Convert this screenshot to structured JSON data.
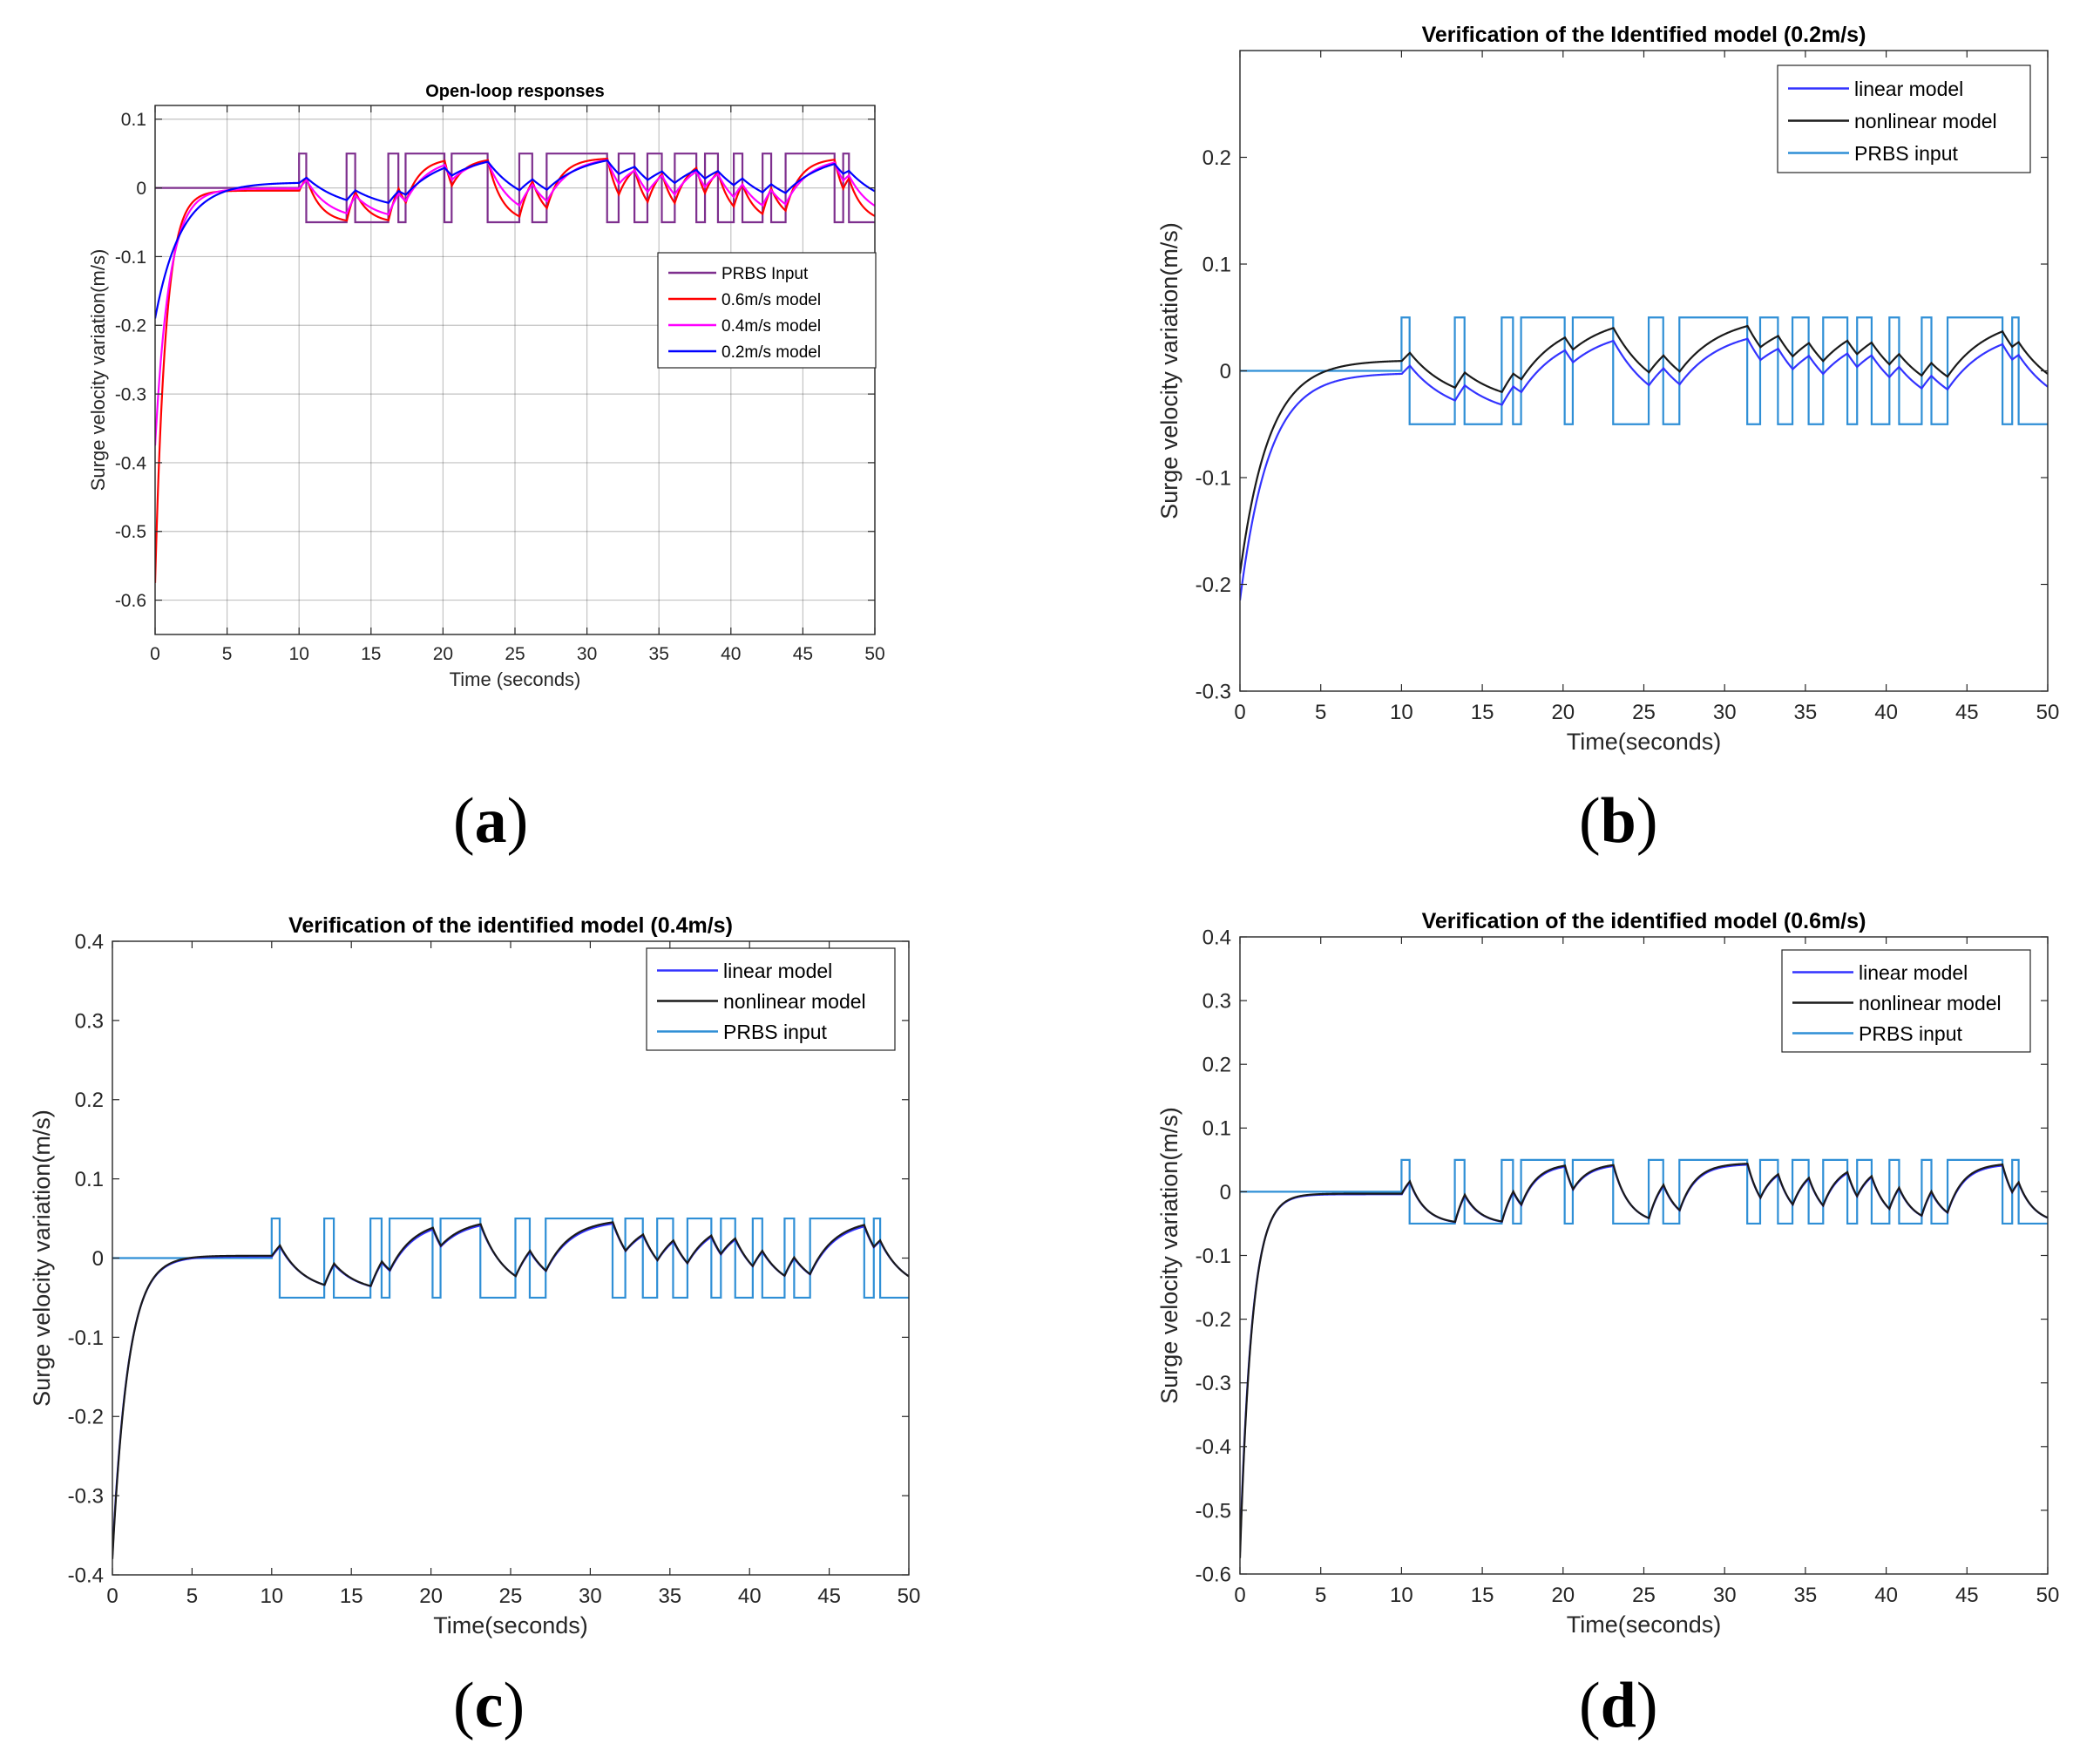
{
  "figure": {
    "captions": [
      {
        "open": "(",
        "letter": "a",
        "close": ")"
      },
      {
        "open": "(",
        "letter": "b",
        "close": ")"
      },
      {
        "open": "(",
        "letter": "c",
        "close": ")"
      },
      {
        "open": "(",
        "letter": "d",
        "close": ")"
      }
    ]
  },
  "chart_data": [
    {
      "id": "a",
      "type": "line",
      "title": "Open-loop responses",
      "xlabel": "Time (seconds)",
      "ylabel": "Surge velocity variation(m/s)",
      "xlim": [
        0,
        50
      ],
      "ylim": [
        -0.65,
        0.12
      ],
      "xticks": [
        0,
        5,
        10,
        15,
        20,
        25,
        30,
        35,
        40,
        45,
        50
      ],
      "yticks": [
        0.1,
        0,
        -0.1,
        -0.2,
        -0.3,
        -0.4,
        -0.5,
        -0.6
      ],
      "ytick_labels": [
        "0.1",
        "0",
        "-0.1",
        "-0.2",
        "-0.3",
        "-0.4",
        "-0.5",
        "-0.6"
      ],
      "grid": true,
      "legend_position": "center-right",
      "prbs": {
        "switch_times": [
          10,
          10.5,
          13.3,
          13.9,
          16.2,
          16.9,
          17.4,
          20.1,
          20.6,
          23.1,
          25.3,
          26.2,
          27.2,
          31.4,
          32.2,
          33.3,
          34.2,
          35.2,
          36.1,
          37.6,
          38.2,
          39.1,
          40.2,
          40.8,
          42.2,
          42.8,
          43.8,
          47.2,
          47.8,
          48.2
        ],
        "high": 0.05,
        "low": -0.05,
        "start_high": true
      },
      "series": [
        {
          "name": "PRBS Input",
          "color": "#7e2f8e",
          "kind": "prbs"
        },
        {
          "name": "0.6m/s model",
          "color": "#ff0000",
          "kind": "response",
          "y0": -0.575,
          "tau1": 0.75,
          "gain": 0.95,
          "tau2": 1.0,
          "settle": -0.004
        },
        {
          "name": "0.4m/s model",
          "color": "#ff00ff",
          "kind": "response",
          "y0": -0.375,
          "tau1": 1.0,
          "gain": 0.92,
          "tau2": 1.6,
          "settle": -0.001
        },
        {
          "name": "0.2m/s model",
          "color": "#0000ff",
          "kind": "response",
          "y0": -0.19,
          "tau1": 1.8,
          "gain": 0.85,
          "tau2": 2.6,
          "settle": 0.008
        }
      ]
    },
    {
      "id": "b",
      "type": "line",
      "title": "Verification of the Identified model (0.2m/s)",
      "xlabel": "Time(seconds)",
      "ylabel": "Surge velocity variation(m/s)",
      "xlim": [
        0,
        50
      ],
      "ylim": [
        -0.3,
        0.3
      ],
      "xticks": [
        0,
        5,
        10,
        15,
        20,
        25,
        30,
        35,
        40,
        45,
        50
      ],
      "yticks": [
        0.2,
        0.1,
        0,
        -0.1,
        -0.2,
        -0.3
      ],
      "ytick_labels": [
        "0.2",
        "0.1",
        "0",
        "-0.1",
        "-0.2",
        "-0.3"
      ],
      "grid": false,
      "legend_position": "top-right",
      "prbs": {
        "switch_times": [
          10,
          10.5,
          13.3,
          13.9,
          16.2,
          16.9,
          17.4,
          20.1,
          20.6,
          23.1,
          25.3,
          26.2,
          27.2,
          31.4,
          32.2,
          33.3,
          34.2,
          35.2,
          36.1,
          37.6,
          38.2,
          39.1,
          40.2,
          40.8,
          42.2,
          42.8,
          43.8,
          47.2,
          47.8,
          48.2
        ],
        "high": 0.05,
        "low": -0.05,
        "start_high": true
      },
      "series": [
        {
          "name": "linear model",
          "color": "#3333ff",
          "kind": "response",
          "y0": -0.215,
          "tau1": 1.8,
          "gain": 0.85,
          "tau2": 2.6,
          "settle": -0.002
        },
        {
          "name": "nonlinear model",
          "color": "#1a1a1a",
          "kind": "response",
          "y0": -0.19,
          "tau1": 1.8,
          "gain": 0.85,
          "tau2": 2.6,
          "settle": 0.01
        },
        {
          "name": "PRBS input",
          "color": "#2f8fd6",
          "kind": "prbs"
        }
      ]
    },
    {
      "id": "c",
      "type": "line",
      "title": "Verification of the identified model (0.4m/s)",
      "xlabel": "Time(seconds)",
      "ylabel": "Surge velocity variation(m/s)",
      "xlim": [
        0,
        50
      ],
      "ylim": [
        -0.4,
        0.4
      ],
      "xticks": [
        0,
        5,
        10,
        15,
        20,
        25,
        30,
        35,
        40,
        45,
        50
      ],
      "yticks": [
        0.4,
        0.3,
        0.2,
        0.1,
        0,
        -0.1,
        -0.2,
        -0.3,
        -0.4
      ],
      "ytick_labels": [
        "0.4",
        "0.3",
        "0.2",
        "0.1",
        "0",
        "-0.1",
        "-0.2",
        "-0.3",
        "-0.4"
      ],
      "grid": false,
      "legend_position": "top-right",
      "prbs": {
        "switch_times": [
          10,
          10.5,
          13.3,
          13.9,
          16.2,
          16.9,
          17.4,
          20.1,
          20.6,
          23.1,
          25.3,
          26.2,
          27.2,
          31.4,
          32.2,
          33.3,
          34.2,
          35.2,
          36.1,
          37.6,
          38.2,
          39.1,
          40.2,
          40.8,
          42.2,
          42.8,
          43.8,
          47.2,
          47.8,
          48.2
        ],
        "high": 0.05,
        "low": -0.05,
        "start_high": true
      },
      "series": [
        {
          "name": "linear model",
          "color": "#3333ff",
          "kind": "response",
          "y0": -0.375,
          "tau1": 1.0,
          "gain": 0.92,
          "tau2": 1.6,
          "settle": 0.002
        },
        {
          "name": "nonlinear model",
          "color": "#1a1a1a",
          "kind": "response",
          "y0": -0.38,
          "tau1": 1.0,
          "gain": 0.93,
          "tau2": 1.55,
          "settle": 0.003
        },
        {
          "name": "PRBS input",
          "color": "#2f8fd6",
          "kind": "prbs"
        }
      ]
    },
    {
      "id": "d",
      "type": "line",
      "title": "Verification of the identified model (0.6m/s)",
      "xlabel": "Time(seconds)",
      "ylabel": "Surge velocity variation(m/s)",
      "xlim": [
        0,
        50
      ],
      "ylim": [
        -0.6,
        0.4
      ],
      "xticks": [
        0,
        5,
        10,
        15,
        20,
        25,
        30,
        35,
        40,
        45,
        50
      ],
      "yticks": [
        0.4,
        0.3,
        0.2,
        0.1,
        0,
        -0.1,
        -0.2,
        -0.3,
        -0.4,
        -0.5,
        -0.6
      ],
      "ytick_labels": [
        "0.4",
        "0.3",
        "0.2",
        "0.1",
        "0",
        "-0.1",
        "-0.2",
        "-0.3",
        "-0.4",
        "-0.5",
        "-0.6"
      ],
      "grid": false,
      "legend_position": "top-right",
      "prbs": {
        "switch_times": [
          10,
          10.5,
          13.3,
          13.9,
          16.2,
          16.9,
          17.4,
          20.1,
          20.6,
          23.1,
          25.3,
          26.2,
          27.2,
          31.4,
          32.2,
          33.3,
          34.2,
          35.2,
          36.1,
          37.6,
          38.2,
          39.1,
          40.2,
          40.8,
          42.2,
          42.8,
          43.8,
          47.2,
          47.8,
          48.2
        ],
        "high": 0.05,
        "low": -0.05,
        "start_high": true
      },
      "series": [
        {
          "name": "linear model",
          "color": "#3333ff",
          "kind": "response",
          "y0": -0.565,
          "tau1": 0.75,
          "gain": 0.95,
          "tau2": 1.0,
          "settle": -0.004
        },
        {
          "name": "nonlinear model",
          "color": "#1a1a1a",
          "kind": "response",
          "y0": -0.575,
          "tau1": 0.75,
          "gain": 0.96,
          "tau2": 0.98,
          "settle": -0.003
        },
        {
          "name": "PRBS input",
          "color": "#2f8fd6",
          "kind": "prbs"
        }
      ]
    }
  ]
}
